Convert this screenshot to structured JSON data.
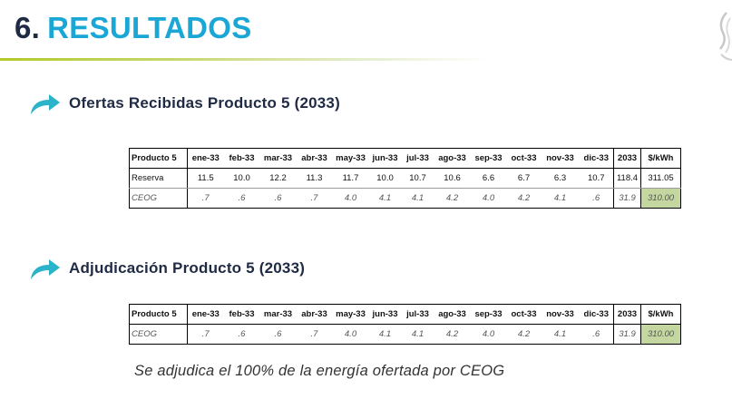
{
  "header": {
    "number": "6.",
    "title": "RESULTADOS"
  },
  "sections": [
    {
      "title": "Ofertas Recibidas Producto 5 (2033)",
      "table": {
        "columns": [
          "Producto 5",
          "ene-33",
          "feb-33",
          "mar-33",
          "abr-33",
          "may-33",
          "jun-33",
          "jul-33",
          "ago-33",
          "sep-33",
          "oct-33",
          "nov-33",
          "dic-33",
          "2033",
          "$/kWh"
        ],
        "rows": [
          {
            "label": "Reserva",
            "values": [
              "11.5",
              "10.0",
              "12.2",
              "11.3",
              "11.7",
              "10.0",
              "10.7",
              "10.6",
              "6.6",
              "6.7",
              "6.3",
              "10.7"
            ],
            "total": "118.4",
            "price": "311.05"
          },
          {
            "label": "CEOG",
            "values": [
              ".7",
              ".6",
              ".6",
              ".7",
              "4.0",
              "4.1",
              "4.1",
              "4.2",
              "4.0",
              "4.2",
              "4.1",
              ".6"
            ],
            "total": "31.9",
            "price": "310.00"
          }
        ]
      }
    },
    {
      "title": "Adjudicación Producto 5 (2033)",
      "table": {
        "columns": [
          "Producto 5",
          "ene-33",
          "feb-33",
          "mar-33",
          "abr-33",
          "may-33",
          "jun-33",
          "jul-33",
          "ago-33",
          "sep-33",
          "oct-33",
          "nov-33",
          "dic-33",
          "2033",
          "$/kWh"
        ],
        "rows": [
          {
            "label": "CEOG",
            "values": [
              ".7",
              ".6",
              ".6",
              ".7",
              "4.0",
              "4.1",
              "4.1",
              "4.2",
              "4.0",
              "4.2",
              "4.1",
              ".6"
            ],
            "total": "31.9",
            "price": "310.00"
          }
        ]
      }
    }
  ],
  "note": "Se adjudica el 100% de la energía ofertada por CEOG",
  "colors": {
    "title_number": "#1f2a44",
    "title_text": "#1aa7d6",
    "rule": "#b3c92c",
    "arrow": "#2ab3c9",
    "price_highlight": "#c4d7a0"
  },
  "icons": [
    "curved-arrow-icon",
    "logo-icon"
  ]
}
